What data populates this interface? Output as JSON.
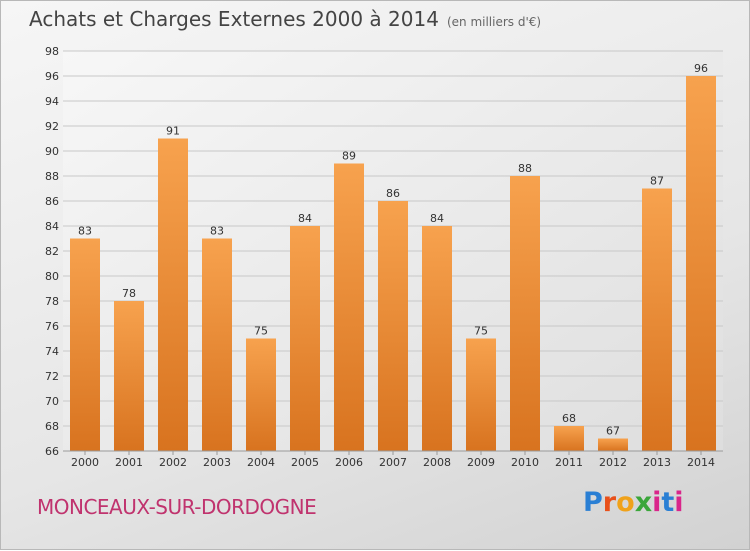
{
  "header": {
    "title": "Achats et Charges Externes 2000 à 2014",
    "subtitle": "(en milliers d'€)"
  },
  "footer": {
    "city": "MONCEAUX-SUR-DORDOGNE",
    "logo": "Proxiti"
  },
  "colors": {
    "bar_top": "#f7a24e",
    "bar_bottom": "#d8731f",
    "city_text": "#c0336e"
  },
  "chart_data": {
    "type": "bar",
    "title": "Achats et Charges Externes 2000 à 2014",
    "subtitle": "(en milliers d'€)",
    "xlabel": "",
    "ylabel": "",
    "categories": [
      "2000",
      "2001",
      "2002",
      "2003",
      "2004",
      "2005",
      "2006",
      "2007",
      "2008",
      "2009",
      "2010",
      "2011",
      "2012",
      "2013",
      "2014"
    ],
    "values": [
      83,
      78,
      91,
      83,
      75,
      84,
      89,
      86,
      84,
      75,
      88,
      68,
      67,
      87,
      96
    ],
    "ylim": [
      66,
      98
    ],
    "yticks": [
      66,
      68,
      70,
      72,
      74,
      76,
      78,
      80,
      82,
      84,
      86,
      88,
      90,
      92,
      94,
      96,
      98
    ],
    "grid": true,
    "legend": "none"
  }
}
